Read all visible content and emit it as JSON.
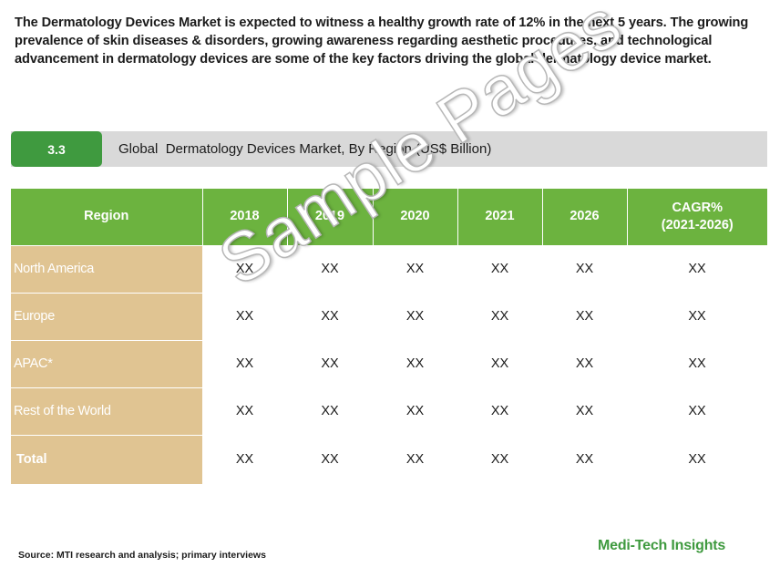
{
  "intro_text": "The Dermatology Devices Market is expected to witness a healthy growth rate of 12% in the next 5 years. The growing prevalence of skin diseases & disorders, growing awareness regarding aesthetic procedures, and technological advancement in dermatology devices are some of the key factors driving the global dermatology device market.",
  "section": {
    "number": "3.3",
    "title": "Global  Dermatology Devices Market, By Region (US$ Billion)"
  },
  "table": {
    "headers": [
      "Region",
      "2018",
      "2019",
      "2020",
      "2021",
      "2026",
      "CAGR%",
      "(2021-2026)"
    ],
    "rows": [
      {
        "region": "North America",
        "values": [
          "XX",
          "XX",
          "XX",
          "XX",
          "XX",
          "XX"
        ]
      },
      {
        "region": "Europe",
        "values": [
          "XX",
          "XX",
          "XX",
          "XX",
          "XX",
          "XX"
        ]
      },
      {
        "region": "APAC*",
        "values": [
          "XX",
          "XX",
          "XX",
          "XX",
          "XX",
          "XX"
        ]
      },
      {
        "region": "Rest of the World",
        "values": [
          "XX",
          "XX",
          "XX",
          "XX",
          "XX",
          "XX"
        ]
      },
      {
        "region": "Total",
        "values": [
          "XX",
          "XX",
          "XX",
          "XX",
          "XX",
          "XX"
        ]
      }
    ]
  },
  "watermark": "Sample Pages",
  "source": "Source: MTI research and analysis; primary interviews",
  "brand": "Medi-Tech Insights",
  "colors": {
    "header_green": "#6cb33f",
    "badge_green": "#3f9a3f",
    "region_tan": "#e0c492",
    "section_gray": "#d9d9d9"
  }
}
